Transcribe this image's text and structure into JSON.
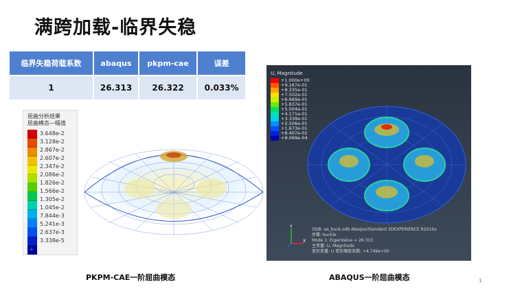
{
  "title": "满跨加载-临界失稳",
  "table": {
    "headers": [
      "临界失稳荷载系数",
      "abaqus",
      "pkpm-cae",
      "误差"
    ],
    "row": [
      "1",
      "26.313",
      "26.322",
      "0.033%"
    ]
  },
  "left_figure": {
    "panel_title1": "屈曲分析结果",
    "panel_title2": "屈曲模态—幅值",
    "legend": [
      "3.648e-2",
      "3.128e-2",
      "2.867e-2",
      "2.607e-2",
      "2.347e-2",
      "2.086e-2",
      "1.826e-2",
      "1.566e-2",
      "1.305e-2",
      "1.045e-2",
      "7.844e-3",
      "5.241e-3",
      "2.637e-3",
      "3.338e-5"
    ],
    "colors": [
      "#d40000",
      "#e84a00",
      "#f08a00",
      "#f5c200",
      "#e8e800",
      "#a8e000",
      "#50d000",
      "#00c850",
      "#00d0b0",
      "#00b0f0",
      "#0080ff",
      "#0050f0",
      "#0020d0",
      "#0000a0"
    ],
    "plus": "+"
  },
  "right_figure": {
    "legend_title": "U, Magnitude",
    "legend": [
      "+1.000e+00",
      "+9.167e-01",
      "+8.335e-01",
      "+7.502e-01",
      "+6.669e-01",
      "+5.837e-01",
      "+5.004e-01",
      "+4.171e-01",
      "+3.339e-01",
      "+2.506e-01",
      "+1.673e-01",
      "+8.407e-02",
      "+8.069e-04"
    ],
    "colors": [
      "#ff0000",
      "#ff5a00",
      "#ffa000",
      "#ffe000",
      "#c8f000",
      "#70e800",
      "#00e060",
      "#00e0b0",
      "#00d0f0",
      "#0090ff",
      "#0050ff",
      "#0020e0",
      "#0000b0"
    ],
    "footer": [
      "ODB: aa_buck.odb    Abaqus/Standard 3DEXPERIENCE R2016x",
      "步骤: buckle",
      "Mode    1: EigenValue =   26.313",
      "主变量: U, Magnitude",
      "变形变量: U  变形缩放系数: +4.749e+00"
    ]
  },
  "captions": {
    "left": "PKPM-CAE一阶屈曲模态",
    "right": "ABAQUS一阶屈曲模态"
  },
  "page_number": "1"
}
